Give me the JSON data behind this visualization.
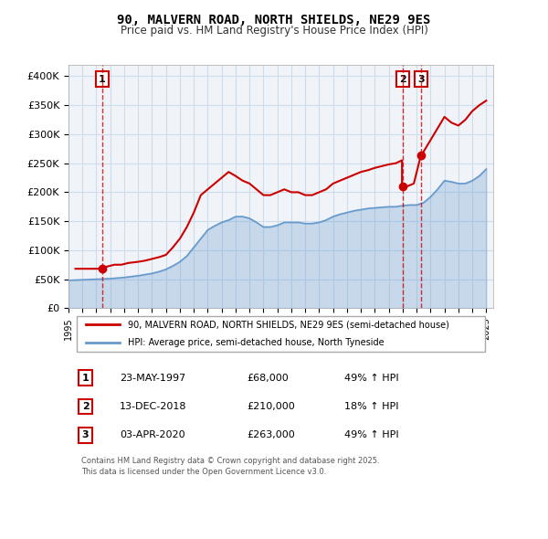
{
  "title": "90, MALVERN ROAD, NORTH SHIELDS, NE29 9ES",
  "subtitle": "Price paid vs. HM Land Registry's House Price Index (HPI)",
  "legend_line1": "90, MALVERN ROAD, NORTH SHIELDS, NE29 9ES (semi-detached house)",
  "legend_line2": "HPI: Average price, semi-detached house, North Tyneside",
  "footnote": "Contains HM Land Registry data © Crown copyright and database right 2025.\nThis data is licensed under the Open Government Licence v3.0.",
  "sale_color": "#cc0000",
  "hpi_color": "#6699cc",
  "vline_color": "#cc0000",
  "grid_color": "#ccddee",
  "background_color": "#f0f4f8",
  "sale_events": [
    {
      "label": "1",
      "date": "1997-05-23",
      "price": 68000,
      "note": "49% ↑ HPI"
    },
    {
      "label": "2",
      "date": "2018-12-13",
      "price": 210000,
      "note": "18% ↑ HPI"
    },
    {
      "label": "3",
      "date": "2020-04-03",
      "price": 263000,
      "note": "49% ↑ HPI"
    }
  ],
  "sale_event_display": [
    {
      "label": "1",
      "date_str": "23-MAY-1997",
      "price_str": "£68,000",
      "note": "49% ↑ HPI"
    },
    {
      "label": "2",
      "date_str": "13-DEC-2018",
      "price_str": "£210,000",
      "note": "18% ↑ HPI"
    },
    {
      "label": "3",
      "date_str": "03-APR-2020",
      "price_str": "£263,000",
      "note": "49% ↑ HPI"
    }
  ],
  "ylim": [
    0,
    420000
  ],
  "yticks": [
    0,
    50000,
    100000,
    150000,
    200000,
    250000,
    300000,
    350000,
    400000
  ],
  "ytick_labels": [
    "£0",
    "£50K",
    "£100K",
    "£150K",
    "£200K",
    "£250K",
    "£300K",
    "£350K",
    "£400K"
  ],
  "xlim_start": 1995.0,
  "xlim_end": 2025.5,
  "sale_line_data_x": [
    1995.5,
    1996.0,
    1996.5,
    1997.0,
    1997.4,
    1997.4,
    1997.8,
    1998.3,
    1998.8,
    1999.3,
    2000.0,
    2000.5,
    2001.0,
    2001.5,
    2002.0,
    2002.5,
    2003.0,
    2003.5,
    2004.0,
    2004.5,
    2005.0,
    2005.5,
    2006.0,
    2006.5,
    2007.0,
    2007.5,
    2008.0,
    2008.5,
    2009.0,
    2009.5,
    2010.0,
    2010.5,
    2011.0,
    2011.5,
    2012.0,
    2012.5,
    2013.0,
    2013.5,
    2014.0,
    2014.5,
    2015.0,
    2015.5,
    2016.0,
    2016.5,
    2017.0,
    2017.5,
    2018.0,
    2018.5,
    2018.95,
    2018.95,
    2019.3,
    2019.8,
    2020.3,
    2020.3,
    2020.5,
    2021.0,
    2021.5,
    2022.0,
    2022.5,
    2023.0,
    2023.5,
    2024.0,
    2024.5,
    2025.0
  ],
  "sale_line_data_y": [
    68000,
    68000,
    68000,
    68000,
    68000,
    68000,
    72000,
    75000,
    75000,
    78000,
    80000,
    82000,
    85000,
    88000,
    92000,
    105000,
    120000,
    140000,
    165000,
    195000,
    205000,
    215000,
    225000,
    235000,
    228000,
    220000,
    215000,
    205000,
    195000,
    195000,
    200000,
    205000,
    200000,
    200000,
    195000,
    195000,
    200000,
    205000,
    215000,
    220000,
    225000,
    230000,
    235000,
    238000,
    242000,
    245000,
    248000,
    250000,
    255000,
    210000,
    210000,
    215000,
    263000,
    263000,
    270000,
    290000,
    310000,
    330000,
    320000,
    315000,
    325000,
    340000,
    350000,
    358000
  ],
  "hpi_line_data_x": [
    1995.0,
    1995.5,
    1996.0,
    1996.5,
    1997.0,
    1997.5,
    1998.0,
    1998.5,
    1999.0,
    1999.5,
    2000.0,
    2000.5,
    2001.0,
    2001.5,
    2002.0,
    2002.5,
    2003.0,
    2003.5,
    2004.0,
    2004.5,
    2005.0,
    2005.5,
    2006.0,
    2006.5,
    2007.0,
    2007.5,
    2008.0,
    2008.5,
    2009.0,
    2009.5,
    2010.0,
    2010.5,
    2011.0,
    2011.5,
    2012.0,
    2012.5,
    2013.0,
    2013.5,
    2014.0,
    2014.5,
    2015.0,
    2015.5,
    2016.0,
    2016.5,
    2017.0,
    2017.5,
    2018.0,
    2018.5,
    2019.0,
    2019.5,
    2020.0,
    2020.5,
    2021.0,
    2021.5,
    2022.0,
    2022.5,
    2023.0,
    2023.5,
    2024.0,
    2024.5,
    2025.0
  ],
  "hpi_line_data_y": [
    48000,
    48500,
    49000,
    49500,
    50000,
    50500,
    51000,
    52000,
    53000,
    54500,
    56000,
    58000,
    60000,
    63000,
    67000,
    73000,
    80000,
    90000,
    105000,
    120000,
    135000,
    142000,
    148000,
    152000,
    158000,
    158000,
    155000,
    148000,
    140000,
    140000,
    143000,
    148000,
    148000,
    148000,
    146000,
    146000,
    148000,
    152000,
    158000,
    162000,
    165000,
    168000,
    170000,
    172000,
    173000,
    174000,
    175000,
    175000,
    177000,
    178000,
    178000,
    182000,
    192000,
    205000,
    220000,
    218000,
    215000,
    215000,
    220000,
    228000,
    240000
  ]
}
